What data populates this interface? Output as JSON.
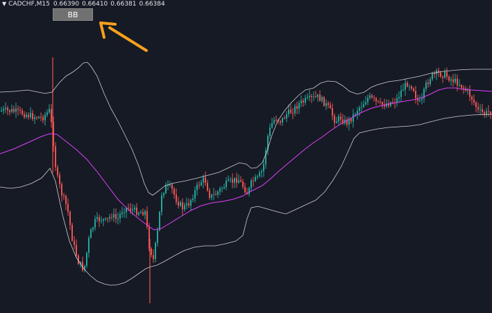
{
  "header": {
    "symbol": "CADCHF,M15",
    "open": "0.66390",
    "high": "0.66410",
    "low": "0.66381",
    "close": "0.66384"
  },
  "indicator_button": {
    "label": "BB"
  },
  "colors": {
    "background": "#161a25",
    "bull": "#26a69a",
    "bear": "#ef5350",
    "band": "#d0d0d0",
    "middle": "#e040fb",
    "arrow": "#f7a21c"
  },
  "annotation": {
    "arrow": "arrow-pointing-to-bb-button"
  }
}
